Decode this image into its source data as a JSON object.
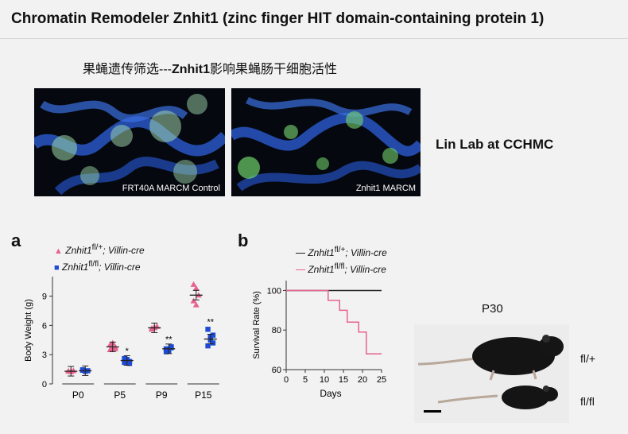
{
  "title": "Chromatin Remodeler Znhit1 (zinc finger HIT domain-containing protein 1)",
  "subtitle_prefix": "果蝇遗传筛选---",
  "subtitle_bold": "Znhit1",
  "subtitle_suffix": "影响果蝇肠干细胞活性",
  "images": {
    "left_caption": "FRT40A MARCM Control",
    "right_caption": "Znhit1 MARCM"
  },
  "lab_label": "Lin Lab at CCHMC",
  "panel_a_letter": "a",
  "panel_b_letter": "b",
  "photo": {
    "title": "P30",
    "top_label": "fl/+",
    "bottom_label": "fl/fl"
  },
  "legend": {
    "gene": "Znhit1",
    "sup_flp": "fl/+",
    "sup_flfl": "fl/fl",
    "suffix": "; Villin-cre"
  },
  "chart_data": [
    {
      "type": "scatter",
      "ylabel": "Body Weight (g)",
      "ylim": [
        0,
        11
      ],
      "yticks": [
        0,
        3,
        6,
        9
      ],
      "categories": [
        "P0",
        "P5",
        "P9",
        "P15"
      ],
      "series": [
        {
          "name": "Znhit1 fl/+; Villin-cre",
          "color": "#e8628f",
          "marker": "triangle",
          "means": [
            1.3,
            3.8,
            5.75,
            9.1
          ],
          "points": [
            [
              1.3,
              1.25,
              1.35,
              1.3,
              1.3
            ],
            [
              3.5,
              3.7,
              3.8,
              4.0,
              4.2,
              3.6
            ],
            [
              5.6,
              5.8,
              5.9,
              5.7,
              5.75
            ],
            [
              10.2,
              9.8,
              9.1,
              8.5,
              8.1
            ]
          ]
        },
        {
          "name": "Znhit1 fl/fl; Villin-cre",
          "color": "#1d4bd6",
          "marker": "square",
          "means": [
            1.35,
            2.4,
            3.6,
            4.6
          ],
          "points": [
            [
              1.4,
              1.3,
              1.35,
              1.45,
              1.3
            ],
            [
              2.2,
              2.5,
              2.3,
              2.6,
              2.4,
              2.1
            ],
            [
              3.3,
              3.5,
              3.8,
              3.6,
              3.4,
              3.7
            ],
            [
              5.6,
              4.8,
              4.2,
              3.9,
              4.5,
              5.0
            ]
          ]
        }
      ],
      "annotations": [
        "",
        "*",
        "**",
        "**"
      ]
    },
    {
      "type": "line",
      "xlabel": "Days",
      "ylabel": "Survival Rate (%)",
      "xlim": [
        0,
        25
      ],
      "ylim": [
        60,
        105
      ],
      "xticks": [
        0,
        5,
        10,
        15,
        20,
        25
      ],
      "yticks": [
        60,
        80,
        100
      ],
      "series": [
        {
          "name": "Znhit1 fl/+; Villin-cre",
          "color": "#222222",
          "steps": [
            [
              0,
              100
            ],
            [
              25,
              100
            ]
          ]
        },
        {
          "name": "Znhit1 fl/fl; Villin-cre",
          "color": "#e8628f",
          "steps": [
            [
              0,
              100
            ],
            [
              11,
              100
            ],
            [
              11,
              95
            ],
            [
              14,
              95
            ],
            [
              14,
              90
            ],
            [
              16,
              90
            ],
            [
              16,
              84
            ],
            [
              19,
              84
            ],
            [
              19,
              79
            ],
            [
              21,
              79
            ],
            [
              21,
              68
            ],
            [
              25,
              68
            ]
          ]
        }
      ]
    }
  ]
}
